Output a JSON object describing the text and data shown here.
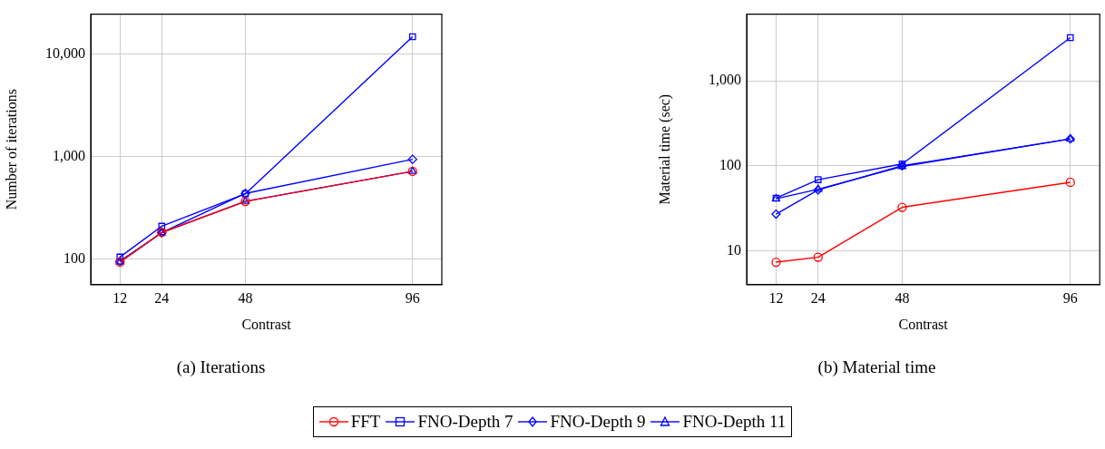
{
  "chart_data": [
    {
      "type": "line",
      "title": "(a) Iterations",
      "xlabel": "Contrast",
      "ylabel": "Number of iterations",
      "x": [
        12,
        24,
        48,
        96
      ],
      "xlim": [
        3.6,
        104.4
      ],
      "xticks": [
        12,
        24,
        48,
        96
      ],
      "ylim": [
        56,
        24400
      ],
      "yticks": [
        {
          "value": 100,
          "label": "100"
        },
        {
          "value": 1000,
          "label": "1,000"
        },
        {
          "value": 10000,
          "label": "10,000"
        }
      ],
      "log": "y",
      "grid": true,
      "legend": "bottom",
      "series": [
        {
          "name": "FFT",
          "color": "#ff0000",
          "marker": "circle",
          "values": [
            93,
            181,
            363,
            714
          ]
        },
        {
          "name": "FNO-Depth 7",
          "color": "#0000ff",
          "marker": "square",
          "values": [
            104,
            208,
            431,
            14700
          ]
        },
        {
          "name": "FNO-Depth 9",
          "color": "#0000ff",
          "marker": "diamond",
          "values": [
            95,
            180,
            435,
            935
          ]
        },
        {
          "name": "FNO-Depth 11",
          "color": "#0000ff",
          "marker": "triangle",
          "values": [
            93,
            180,
            365,
            714
          ]
        }
      ]
    },
    {
      "type": "line",
      "title": "(b) Material time",
      "xlabel": "Contrast",
      "ylabel": "Material time (sec)",
      "x": [
        12,
        24,
        48,
        96
      ],
      "xlim": [
        3.6,
        104.4
      ],
      "xticks": [
        12,
        24,
        48,
        96
      ],
      "ylim": [
        4,
        6080
      ],
      "yticks": [
        {
          "value": 10,
          "label": "10"
        },
        {
          "value": 100,
          "label": "100"
        },
        {
          "value": 1000,
          "label": "1,000"
        }
      ],
      "log": "y",
      "grid": true,
      "legend": "bottom",
      "series": [
        {
          "name": "FFT",
          "color": "#ff0000",
          "marker": "circle",
          "values": [
            7.35,
            8.4,
            32.5,
            64
          ]
        },
        {
          "name": "FNO-Depth 7",
          "color": "#0000ff",
          "marker": "square",
          "values": [
            41.6,
            68.7,
            105,
            3220
          ]
        },
        {
          "name": "FNO-Depth 9",
          "color": "#0000ff",
          "marker": "diamond",
          "values": [
            27,
            52,
            100,
            207
          ]
        },
        {
          "name": "FNO-Depth 11",
          "color": "#0000ff",
          "marker": "triangle",
          "values": [
            41,
            53,
            98,
            207
          ]
        }
      ]
    }
  ]
}
